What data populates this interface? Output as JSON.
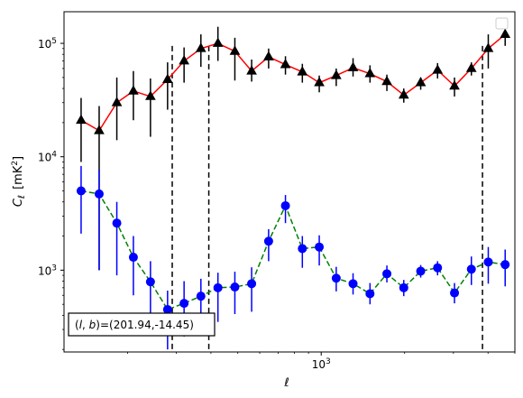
{
  "chart_data": {
    "type": "scatter",
    "xlabel": "ℓ",
    "ylabel_main": "C",
    "ylabel_sub": "ℓ",
    "ylabel_unit": "[mK",
    "ylabel_unit_sup": "2",
    "ylabel_unit_close": "]",
    "xscale": "log",
    "yscale": "log",
    "xlim": [
      118,
      5000
    ],
    "ylim": [
      190,
      190000
    ],
    "grid": false,
    "legend": "top-right",
    "legend_entries": [],
    "x_major_ticks": [
      {
        "value": 1000,
        "base": "10",
        "exp": "3"
      }
    ],
    "y_major_ticks": [
      {
        "value": 1000,
        "base": "10",
        "exp": "3"
      },
      {
        "value": 10000,
        "base": "10",
        "exp": "4"
      },
      {
        "value": 100000,
        "base": "10",
        "exp": "5"
      }
    ],
    "vlines": [
      290,
      393,
      3820
    ],
    "vline_top": 95000,
    "series": [
      {
        "color": "#ff0000",
        "linestyle": "solid",
        "marker": "triangle",
        "marker_color": "#000000",
        "errorbar_color": "#000000",
        "x": [
          136,
          158,
          183,
          210,
          242,
          279,
          320,
          368,
          424,
          488,
          561,
          646,
          743,
          855,
          984,
          1133,
          1303,
          1500,
          1726,
          1986,
          2286,
          2630,
          3027,
          3483,
          4008,
          4612
        ],
        "y": [
          21000,
          17000,
          30000,
          38000,
          34000,
          48000,
          70000,
          90000,
          100000,
          85000,
          57000,
          76000,
          65000,
          56000,
          45000,
          52000,
          61000,
          54000,
          46000,
          35000,
          45000,
          58000,
          42000,
          60000,
          90000,
          120000
        ],
        "yerr_low": [
          12000,
          16000,
          16000,
          17000,
          19000,
          22000,
          25000,
          28000,
          30000,
          38000,
          11000,
          16000,
          12000,
          11000,
          8000,
          10000,
          10000,
          9000,
          8000,
          5000,
          6000,
          9000,
          8000,
          8000,
          30000,
          25000
        ],
        "yerr_high": [
          12000,
          11000,
          20000,
          19000,
          15000,
          20000,
          22000,
          30000,
          40000,
          27000,
          15000,
          14000,
          12000,
          10000,
          7000,
          8000,
          13000,
          10000,
          7000,
          5000,
          5000,
          9000,
          8000,
          8000,
          30000,
          25000
        ]
      },
      {
        "color": "#008000",
        "linestyle": "dashed",
        "marker": "circle",
        "marker_color": "#0000ff",
        "errorbar_color": "#0000ff",
        "x": [
          136,
          158,
          183,
          210,
          242,
          279,
          320,
          368,
          424,
          488,
          561,
          646,
          743,
          855,
          984,
          1133,
          1303,
          1500,
          1726,
          1986,
          2286,
          2630,
          3027,
          3483,
          4008,
          4612
        ],
        "y": [
          5000,
          4700,
          2600,
          1300,
          790,
          450,
          510,
          590,
          700,
          710,
          760,
          1800,
          3700,
          1550,
          1600,
          850,
          760,
          620,
          930,
          700,
          980,
          1050,
          630,
          1020,
          1180,
          1120
        ],
        "yerr_low": [
          2900,
          3700,
          1700,
          700,
          410,
          250,
          250,
          300,
          350,
          300,
          330,
          600,
          1100,
          500,
          500,
          200,
          150,
          120,
          150,
          110,
          120,
          150,
          120,
          280,
          420,
          400
        ],
        "yerr_high": [
          3300,
          3000,
          1400,
          700,
          410,
          210,
          290,
          250,
          250,
          260,
          300,
          500,
          900,
          450,
          430,
          220,
          180,
          150,
          170,
          120,
          130,
          150,
          140,
          300,
          420,
          400
        ]
      }
    ],
    "annotation": "(l, b)=(201.94,-14.45)"
  }
}
